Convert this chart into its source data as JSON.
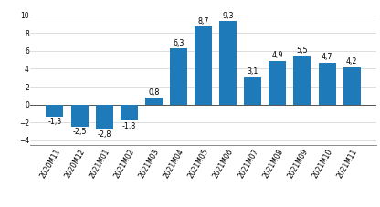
{
  "categories": [
    "2020M11",
    "2020M12",
    "2021M01",
    "2021M02",
    "2021M03",
    "2021M04",
    "2021M05",
    "2021M06",
    "2021M07",
    "2021M08",
    "2021M09",
    "2021M10",
    "2021M11"
  ],
  "values": [
    -1.3,
    -2.5,
    -2.8,
    -1.8,
    0.8,
    6.3,
    8.7,
    9.3,
    3.1,
    4.9,
    5.5,
    4.7,
    4.2
  ],
  "bar_color": "#1e7ab8",
  "ylim": [
    -4.5,
    11.0
  ],
  "yticks": [
    -4,
    -2,
    0,
    2,
    4,
    6,
    8,
    10
  ],
  "label_fontsize": 5.8,
  "tick_fontsize": 5.5,
  "bar_width": 0.7,
  "background_color": "#ffffff",
  "grid_color": "#d0d0d0"
}
